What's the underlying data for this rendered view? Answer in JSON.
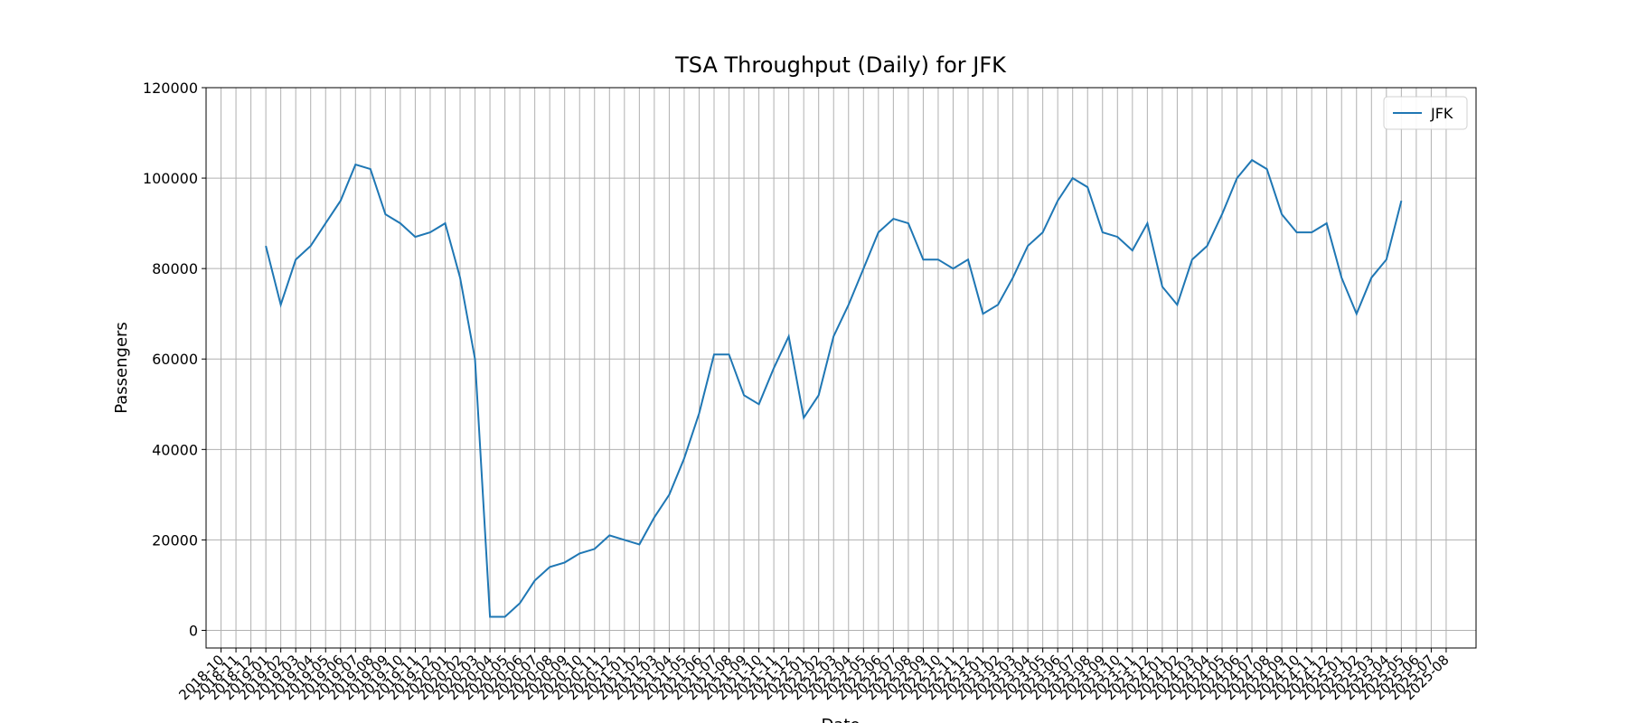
{
  "chart_data": {
    "type": "line",
    "title": "TSA Throughput (Daily) for JFK",
    "xlabel": "Date",
    "ylabel": "Passengers",
    "x": [
      "2019-01",
      "2019-02",
      "2019-03",
      "2019-04",
      "2019-05",
      "2019-06",
      "2019-07",
      "2019-08",
      "2019-09",
      "2019-10",
      "2019-11",
      "2019-12",
      "2020-01",
      "2020-02",
      "2020-03",
      "2020-04",
      "2020-05",
      "2020-06",
      "2020-07",
      "2020-08",
      "2020-09",
      "2020-10",
      "2020-11",
      "2020-12",
      "2021-01",
      "2021-02",
      "2021-03",
      "2021-04",
      "2021-05",
      "2021-06",
      "2021-07",
      "2021-08",
      "2021-09",
      "2021-10",
      "2021-11",
      "2021-12",
      "2022-01",
      "2022-02",
      "2022-03",
      "2022-04",
      "2022-05",
      "2022-06",
      "2022-07",
      "2022-08",
      "2022-09",
      "2022-10",
      "2022-11",
      "2022-12",
      "2023-01",
      "2023-02",
      "2023-03",
      "2023-04",
      "2023-05",
      "2023-06",
      "2023-07",
      "2023-08",
      "2023-09",
      "2023-10",
      "2023-11",
      "2023-12",
      "2024-01",
      "2024-02",
      "2024-03",
      "2024-04",
      "2024-05",
      "2024-06",
      "2024-07",
      "2024-08",
      "2024-09",
      "2024-10",
      "2024-11",
      "2024-12",
      "2025-01",
      "2025-02",
      "2025-03",
      "2025-04",
      "2025-05"
    ],
    "series": [
      {
        "name": "JFK",
        "color": "#1f77b4",
        "values": [
          85000,
          72000,
          82000,
          85000,
          90000,
          95000,
          103000,
          102000,
          92000,
          90000,
          87000,
          88000,
          90000,
          78000,
          60000,
          3000,
          3000,
          6000,
          11000,
          14000,
          15000,
          17000,
          18000,
          21000,
          20000,
          19000,
          25000,
          30000,
          38000,
          48000,
          61000,
          61000,
          52000,
          50000,
          58000,
          65000,
          47000,
          52000,
          65000,
          72000,
          80000,
          88000,
          91000,
          90000,
          82000,
          82000,
          80000,
          82000,
          70000,
          72000,
          78000,
          85000,
          88000,
          95000,
          100000,
          98000,
          88000,
          87000,
          84000,
          90000,
          76000,
          72000,
          82000,
          85000,
          92000,
          100000,
          104000,
          102000,
          92000,
          88000,
          88000,
          90000,
          78000,
          70000,
          78000,
          82000,
          95000
        ]
      }
    ],
    "xlim": [
      "2018-09",
      "2025-10"
    ],
    "xticks": [
      "2018-10",
      "2018-11",
      "2018-12",
      "2019-01",
      "2019-02",
      "2019-03",
      "2019-04",
      "2019-05",
      "2019-06",
      "2019-07",
      "2019-08",
      "2019-09",
      "2019-10",
      "2019-11",
      "2019-12",
      "2020-01",
      "2020-02",
      "2020-03",
      "2020-04",
      "2020-05",
      "2020-06",
      "2020-07",
      "2020-08",
      "2020-09",
      "2020-10",
      "2020-11",
      "2020-12",
      "2021-01",
      "2021-02",
      "2021-03",
      "2021-04",
      "2021-05",
      "2021-06",
      "2021-07",
      "2021-08",
      "2021-09",
      "2021-10",
      "2021-11",
      "2021-12",
      "2022-01",
      "2022-02",
      "2022-03",
      "2022-04",
      "2022-05",
      "2022-06",
      "2022-07",
      "2022-08",
      "2022-09",
      "2022-10",
      "2022-11",
      "2022-12",
      "2023-01",
      "2023-02",
      "2023-03",
      "2023-04",
      "2023-05",
      "2023-06",
      "2023-07",
      "2023-08",
      "2023-09",
      "2023-10",
      "2023-11",
      "2023-12",
      "2024-01",
      "2024-02",
      "2024-03",
      "2024-04",
      "2024-05",
      "2024-06",
      "2024-07",
      "2024-08",
      "2024-09",
      "2024-10",
      "2024-11",
      "2024-12",
      "2025-01",
      "2025-02",
      "2025-03",
      "2025-04",
      "2025-05",
      "2025-06",
      "2025-07",
      "2025-08"
    ],
    "ylim": [
      -3900,
      120000
    ],
    "yticks": [
      0,
      20000,
      40000,
      60000,
      80000,
      100000,
      120000
    ],
    "grid": true,
    "legend": "upper right"
  }
}
